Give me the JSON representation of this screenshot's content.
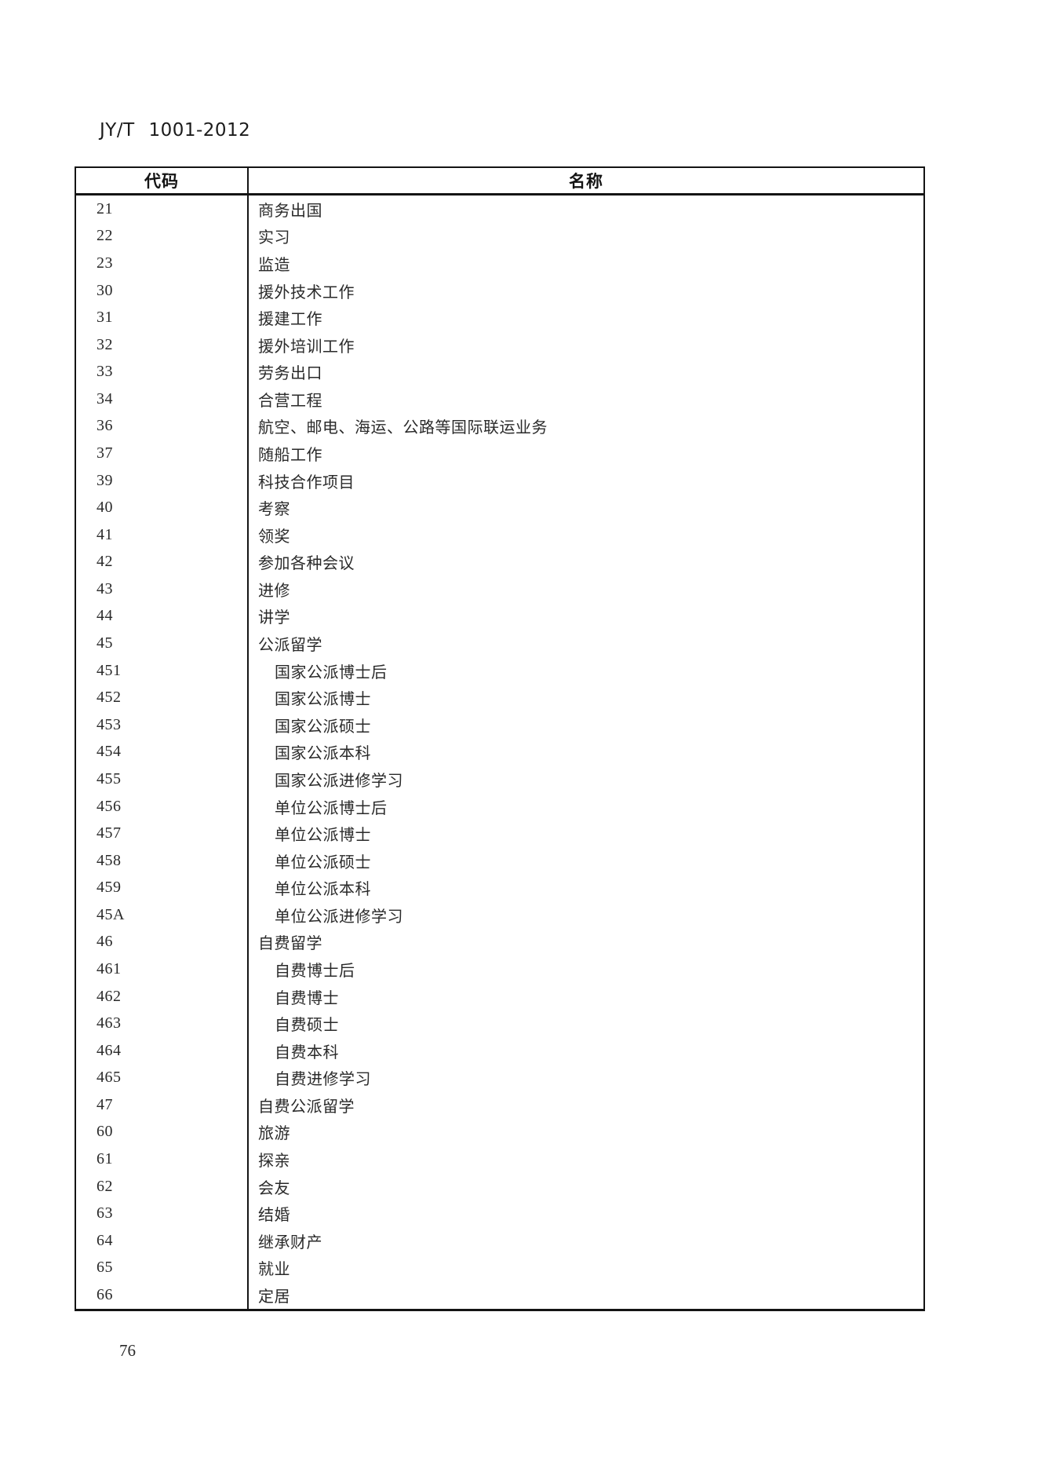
{
  "page": {
    "header": "JY/T 1001-2012",
    "page_number": "76"
  },
  "table": {
    "columns": [
      "代码",
      "名称"
    ],
    "rows": [
      {
        "code": "21",
        "name": "商务出国",
        "indent": false
      },
      {
        "code": "22",
        "name": "实习",
        "indent": false
      },
      {
        "code": "23",
        "name": "监造",
        "indent": false
      },
      {
        "code": "30",
        "name": "援外技术工作",
        "indent": false
      },
      {
        "code": "31",
        "name": "援建工作",
        "indent": false
      },
      {
        "code": "32",
        "name": "援外培训工作",
        "indent": false
      },
      {
        "code": "33",
        "name": "劳务出口",
        "indent": false
      },
      {
        "code": "34",
        "name": "合营工程",
        "indent": false
      },
      {
        "code": "36",
        "name": "航空、邮电、海运、公路等国际联运业务",
        "indent": false
      },
      {
        "code": "37",
        "name": "随船工作",
        "indent": false
      },
      {
        "code": "39",
        "name": "科技合作项目",
        "indent": false
      },
      {
        "code": "40",
        "name": "考察",
        "indent": false
      },
      {
        "code": "41",
        "name": "领奖",
        "indent": false
      },
      {
        "code": "42",
        "name": "参加各种会议",
        "indent": false
      },
      {
        "code": "43",
        "name": "进修",
        "indent": false
      },
      {
        "code": "44",
        "name": "讲学",
        "indent": false
      },
      {
        "code": "45",
        "name": "公派留学",
        "indent": false
      },
      {
        "code": "451",
        "name": "国家公派博士后",
        "indent": true
      },
      {
        "code": "452",
        "name": "国家公派博士",
        "indent": true
      },
      {
        "code": "453",
        "name": "国家公派硕士",
        "indent": true
      },
      {
        "code": "454",
        "name": "国家公派本科",
        "indent": true
      },
      {
        "code": "455",
        "name": "国家公派进修学习",
        "indent": true
      },
      {
        "code": "456",
        "name": "单位公派博士后",
        "indent": true
      },
      {
        "code": "457",
        "name": "单位公派博士",
        "indent": true
      },
      {
        "code": "458",
        "name": "单位公派硕士",
        "indent": true
      },
      {
        "code": "459",
        "name": "单位公派本科",
        "indent": true
      },
      {
        "code": "45A",
        "name": "单位公派进修学习",
        "indent": true
      },
      {
        "code": "46",
        "name": "自费留学",
        "indent": false
      },
      {
        "code": "461",
        "name": "自费博士后",
        "indent": true
      },
      {
        "code": "462",
        "name": "自费博士",
        "indent": true
      },
      {
        "code": "463",
        "name": "自费硕士",
        "indent": true
      },
      {
        "code": "464",
        "name": "自费本科",
        "indent": true
      },
      {
        "code": "465",
        "name": "自费进修学习",
        "indent": true
      },
      {
        "code": "47",
        "name": "自费公派留学",
        "indent": false
      },
      {
        "code": "60",
        "name": "旅游",
        "indent": false
      },
      {
        "code": "61",
        "name": "探亲",
        "indent": false
      },
      {
        "code": "62",
        "name": "会友",
        "indent": false
      },
      {
        "code": "63",
        "name": "结婚",
        "indent": false
      },
      {
        "code": "64",
        "name": "继承财产",
        "indent": false
      },
      {
        "code": "65",
        "name": "就业",
        "indent": false
      },
      {
        "code": "66",
        "name": "定居",
        "indent": false
      }
    ]
  }
}
